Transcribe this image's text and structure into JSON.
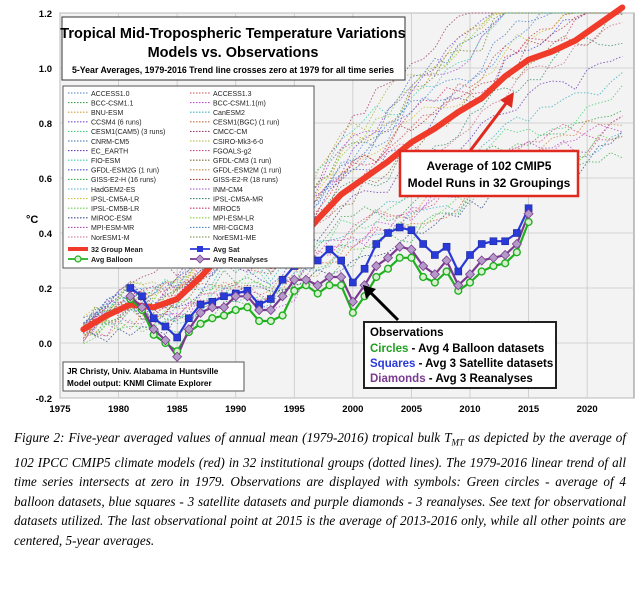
{
  "chart_data": {
    "type": "line",
    "title": "Tropical Mid-Tropospheric Temperature Variations",
    "subtitle": "Models vs. Observations",
    "subtitle2": "5-Year Averages, 1979-2016 Trend line crosses zero at 1979 for all time series",
    "ylabel": "°C",
    "xlim": [
      1975,
      2024
    ],
    "ylim": [
      -0.2,
      1.2
    ],
    "x_ticks": [
      1975,
      1980,
      1985,
      1990,
      1995,
      2000,
      2005,
      2010,
      2015,
      2020
    ],
    "y_ticks": [
      -0.2,
      0.0,
      0.2,
      0.4,
      0.6,
      0.8,
      1.0,
      1.2
    ],
    "x_tick_labels": [
      "1975",
      "1980",
      "1985",
      "1990",
      "1995",
      "2000",
      "2005",
      "2010",
      "2015",
      "2020"
    ],
    "y_tick_labels": [
      "-0.2",
      "0.0",
      "0.2",
      "0.4",
      "0.6",
      "0.8",
      "1.0",
      "1.2"
    ],
    "legend_models": [
      "ACCESS1.0",
      "ACCESS1.3",
      "BCC-CSM1.1",
      "BCC-CSM1.1(m)",
      "BNU-ESM",
      "CanESM2",
      "CCSM4 (6 runs)",
      "CESM1(BGC) (1 run)",
      "CESM1(CAM5) (3 runs)",
      "CMCC-CM",
      "CNRM-CM5",
      "CSIRO-Mk3-6-0",
      "EC_EARTH",
      "FGOALS-g2",
      "FIO-ESM",
      "GFDL-CM3 (1 run)",
      "GFDL-ESM2G (1 run)",
      "GFDL-ESM2M (1 run)",
      "GISS-E2-H (16 runs)",
      "GISS-E2-R (18 runs)",
      "HadGEM2-ES",
      "INM-CM4",
      "IPSL-CM5A-LR",
      "IPSL-CM5A-MR",
      "IPSL-CM5B-LR",
      "MIROC5",
      "MIROC-ESM",
      "MPI-ESM-LR",
      "MPI-ESM-MR",
      "MRI-CGCM3",
      "NorESM1-M",
      "NorESM1-ME"
    ],
    "legend_model_colors": [
      "#4a7bd0",
      "#d04a4a",
      "#3aa04a",
      "#c04ad0",
      "#d0a03a",
      "#3ab0c0",
      "#7a4ad0",
      "#d06a3a",
      "#4ad07a",
      "#a03a6a",
      "#3a6ab0",
      "#b0b03a",
      "#6a3ab0",
      "#d04a8a",
      "#3ad0b0",
      "#8a6a3a",
      "#4a4ad0",
      "#d08a4a",
      "#3ab04a",
      "#b03a3a",
      "#4ab0d0",
      "#a04ad0",
      "#d0c03a",
      "#3a8a6a",
      "#6ad04a",
      "#d03a6a",
      "#3a4a8a",
      "#8ad03a",
      "#b04ab0",
      "#4a8ad0",
      "#d06a8a",
      "#6a8a3a"
    ],
    "legend_main": [
      {
        "label": "32 Group Mean",
        "color": "#f03a2a"
      },
      {
        "label": "Avg Sat",
        "color": "#2a3ad8"
      },
      {
        "label": "Avg Balloon",
        "color": "#20b020"
      },
      {
        "label": "Avg Reanalyses",
        "color": "#7a3a90"
      }
    ],
    "series": [
      {
        "name": "32 Group Mean",
        "color": "#f03a2a",
        "x": [
          1977,
          1979,
          1981,
          1983,
          1985,
          1987,
          1989,
          1991,
          1993,
          1995,
          1997,
          1999,
          2001,
          2003,
          2005,
          2007,
          2009,
          2011,
          2013,
          2015,
          2017,
          2019,
          2021,
          2023
        ],
        "values": [
          0.05,
          0.1,
          0.14,
          0.13,
          0.16,
          0.24,
          0.33,
          0.3,
          0.28,
          0.35,
          0.45,
          0.54,
          0.6,
          0.66,
          0.73,
          0.78,
          0.84,
          0.89,
          0.97,
          1.03,
          1.06,
          1.1,
          1.16,
          1.22
        ]
      },
      {
        "name": "Avg Sat",
        "color": "#2a3ad8",
        "x": [
          1981,
          1982,
          1983,
          1984,
          1985,
          1986,
          1987,
          1988,
          1989,
          1990,
          1991,
          1992,
          1993,
          1994,
          1995,
          1996,
          1997,
          1998,
          1999,
          2000,
          2001,
          2002,
          2003,
          2004,
          2005,
          2006,
          2007,
          2008,
          2009,
          2010,
          2011,
          2012,
          2013,
          2014,
          2015
        ],
        "values": [
          0.2,
          0.17,
          0.09,
          0.06,
          0.02,
          0.09,
          0.14,
          0.15,
          0.17,
          0.18,
          0.19,
          0.14,
          0.16,
          0.23,
          0.28,
          0.34,
          0.3,
          0.34,
          0.3,
          0.22,
          0.27,
          0.36,
          0.4,
          0.42,
          0.41,
          0.36,
          0.32,
          0.35,
          0.26,
          0.32,
          0.36,
          0.37,
          0.37,
          0.4,
          0.49
        ]
      },
      {
        "name": "Avg Balloon",
        "color": "#20b020",
        "x": [
          1981,
          1982,
          1983,
          1984,
          1985,
          1986,
          1987,
          1988,
          1989,
          1990,
          1991,
          1992,
          1993,
          1994,
          1995,
          1996,
          1997,
          1998,
          1999,
          2000,
          2001,
          2002,
          2003,
          2004,
          2005,
          2006,
          2007,
          2008,
          2009,
          2010,
          2011,
          2012,
          2013,
          2014,
          2015
        ],
        "values": [
          0.16,
          0.12,
          0.03,
          0.0,
          -0.03,
          0.04,
          0.07,
          0.09,
          0.1,
          0.12,
          0.13,
          0.08,
          0.08,
          0.1,
          0.19,
          0.21,
          0.18,
          0.21,
          0.21,
          0.11,
          0.17,
          0.24,
          0.27,
          0.31,
          0.31,
          0.24,
          0.22,
          0.26,
          0.19,
          0.22,
          0.26,
          0.28,
          0.29,
          0.33,
          0.44
        ]
      },
      {
        "name": "Avg Reanalyses",
        "color": "#7a3a90",
        "x": [
          1981,
          1982,
          1983,
          1984,
          1985,
          1986,
          1987,
          1988,
          1989,
          1990,
          1991,
          1992,
          1993,
          1994,
          1995,
          1996,
          1997,
          1998,
          1999,
          2000,
          2001,
          2002,
          2003,
          2004,
          2005,
          2006,
          2007,
          2008,
          2009,
          2010,
          2011,
          2012,
          2013,
          2014,
          2015
        ],
        "values": [
          0.17,
          0.13,
          0.05,
          0.01,
          -0.05,
          0.05,
          0.11,
          0.13,
          0.13,
          0.17,
          0.17,
          0.12,
          0.12,
          0.17,
          0.23,
          0.23,
          0.21,
          0.24,
          0.24,
          0.15,
          0.21,
          0.28,
          0.31,
          0.35,
          0.34,
          0.28,
          0.25,
          0.3,
          0.21,
          0.25,
          0.3,
          0.31,
          0.32,
          0.36,
          0.47
        ]
      }
    ],
    "annotation_model": [
      "Average of 102 CMIP5",
      "Model Runs in 32 Groupings"
    ],
    "annotation_obs": {
      "title": "Observations",
      "circles_word": "Circles",
      "circles_text": " - Avg 4 Balloon datasets",
      "squares_word": "Squares",
      "squares_text": " - Avg 3 Satellite datasets",
      "diamonds_word": "Diamonds",
      "diamonds_text": " - Avg 3 Reanalyses"
    },
    "credit": [
      "JR Christy, Univ. Alabama in Huntsville",
      "Model output: KNMI Climate Explorer"
    ]
  },
  "caption": "Figure 2: Five-year averaged values of annual mean (1979-2016) tropical bulk T",
  "caption_sub": "MT",
  "caption_rest": " as depicted by the average of 102 IPCC CMIP5 climate models (red) in 32 institutional groups (dotted lines).  The 1979-2016 linear trend of all time series intersects at zero in 1979.  Observations are displayed with symbols: Green circles - average of 4 balloon datasets, blue squares - 3 satellite datasets and purple diamonds - 3 reanalyses.  See text for observational datasets utilized.  The last observational point at 2015 is the average of 2013-2016 only, while all other points are centered, 5-year averages."
}
